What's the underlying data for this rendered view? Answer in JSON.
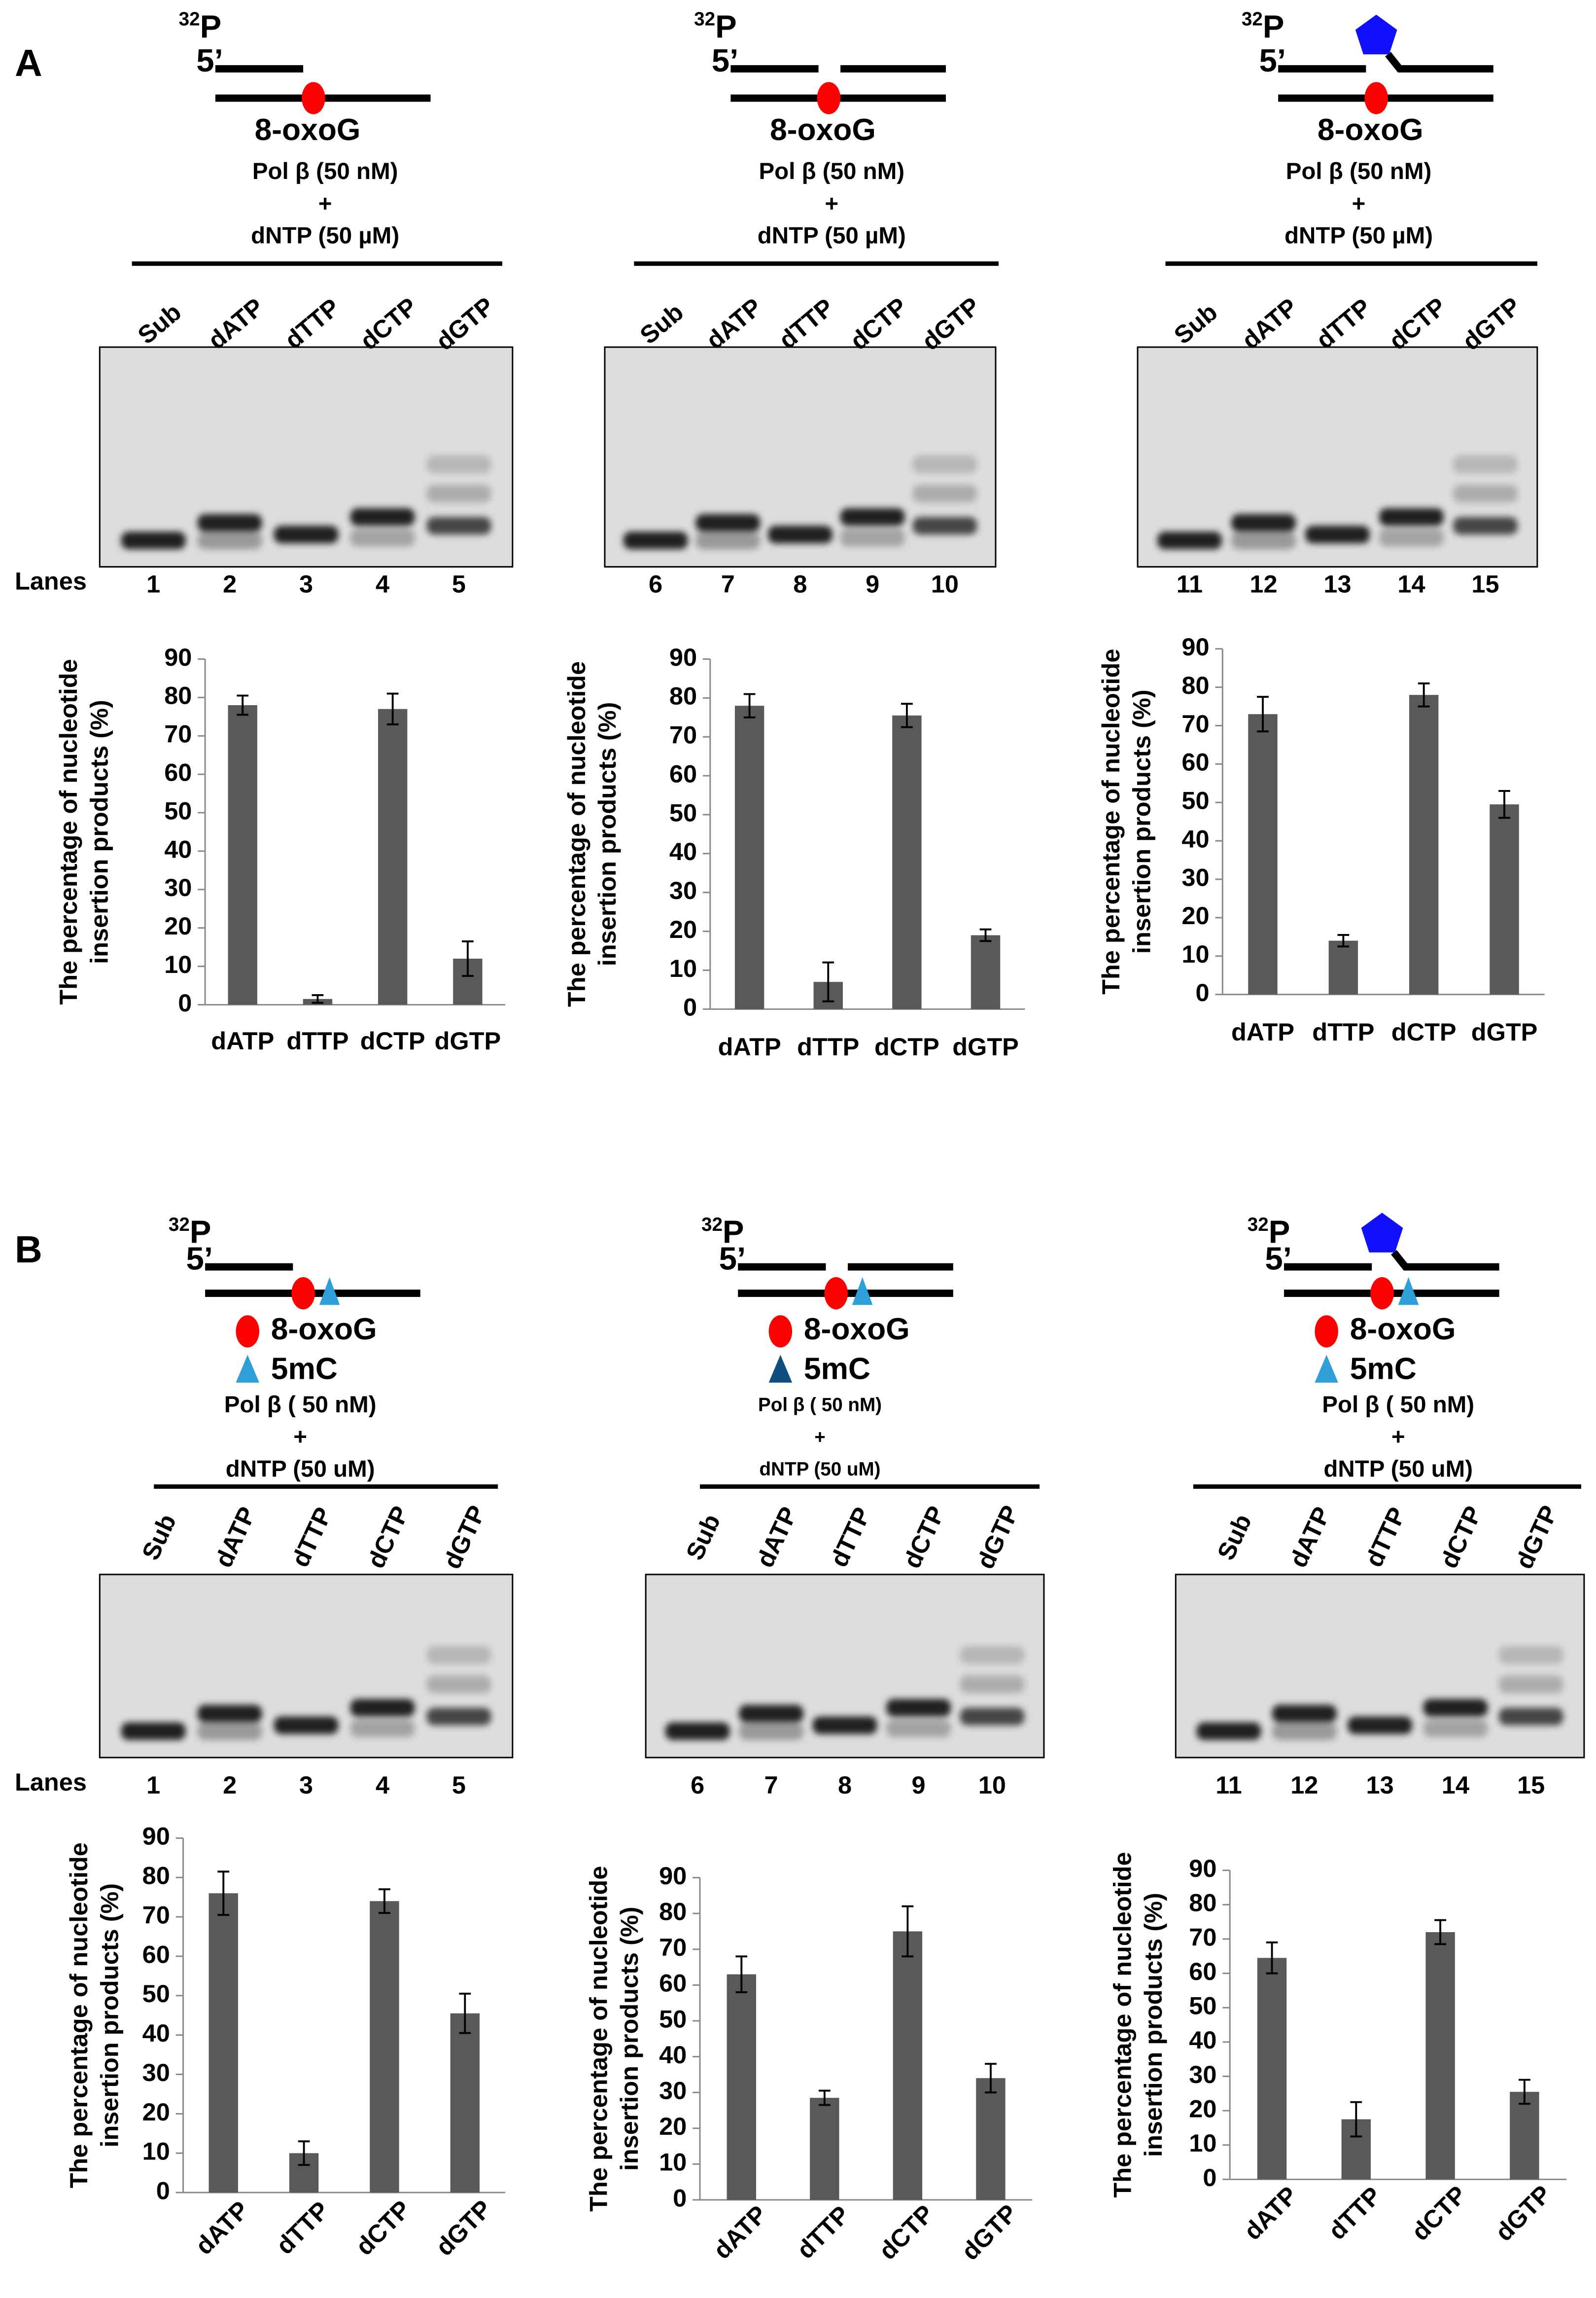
{
  "panels": [
    {
      "label": "A",
      "lanes_label": "Lanes",
      "diagrams": [
        {
          "isotope_mass": "32",
          "isotope": "P",
          "end": "5’",
          "lesion": "8-oxoG",
          "enzyme": "Pol β (50 nM)",
          "plus": "+",
          "nucleotide": "dNTP (50 µM)",
          "lanes": [
            "Sub",
            "dATP",
            "dTTP",
            "dCTP",
            "dGTP"
          ],
          "lane_numbers": [
            1,
            2,
            3,
            4,
            5
          ]
        },
        {
          "isotope_mass": "32",
          "isotope": "P",
          "end": "5’",
          "lesion": "8-oxoG",
          "enzyme": "Pol β (50 nM)",
          "plus": "+",
          "nucleotide": "dNTP (50 µM)",
          "lanes": [
            "Sub",
            "dATP",
            "dTTP",
            "dCTP",
            "dGTP"
          ],
          "lane_numbers": [
            6,
            7,
            8,
            9,
            10
          ]
        },
        {
          "isotope_mass": "32",
          "isotope": "P",
          "end": "5’",
          "lesion": "8-oxoG",
          "enzyme": "Pol β (50 nM)",
          "plus": "+",
          "nucleotide": "dNTP (50 µM)",
          "lanes": [
            "Sub",
            "dATP",
            "dTTP",
            "dCTP",
            "dGTP"
          ],
          "lane_numbers": [
            11,
            12,
            13,
            14,
            15
          ]
        }
      ]
    },
    {
      "label": "B",
      "lanes_label": "Lanes",
      "diagrams": [
        {
          "isotope_mass": "32",
          "isotope": "P",
          "end": "5’",
          "lesion": "8-oxoG",
          "modification": "5mC",
          "enzyme": "Pol β ( 50 nM)",
          "plus": "+",
          "nucleotide": "dNTP (50 uM)",
          "lanes": [
            "Sub",
            "dATP",
            "dTTP",
            "dCTP",
            "dGTP"
          ],
          "lane_numbers": [
            1,
            2,
            3,
            4,
            5
          ]
        },
        {
          "isotope_mass": "32",
          "isotope": "P",
          "end": "5’",
          "lesion": "8-oxoG",
          "modification": "5mC",
          "enzyme": "Pol β ( 50 nM)",
          "plus": "+",
          "nucleotide": "dNTP (50 uM)",
          "lanes": [
            "Sub",
            "dATP",
            "dTTP",
            "dCTP",
            "dGTP"
          ],
          "lane_numbers": [
            6,
            7,
            8,
            9,
            10
          ]
        },
        {
          "isotope_mass": "32",
          "isotope": "P",
          "end": "5’",
          "lesion": "8-oxoG",
          "modification": "5mC",
          "enzyme": "Pol β ( 50 nM)",
          "plus": "+",
          "nucleotide": "dNTP (50 uM)",
          "lanes": [
            "Sub",
            "dATP",
            "dTTP",
            "dCTP",
            "dGTP"
          ],
          "lane_numbers": [
            11,
            12,
            13,
            14,
            15
          ]
        }
      ]
    }
  ],
  "chart_data": [
    {
      "type": "bar",
      "ylabel": [
        "The percentage of nucleotide",
        "insertion products (%)"
      ],
      "categories": [
        "dATP",
        "dTTP",
        "dCTP",
        "dGTP"
      ],
      "values": [
        78,
        1.5,
        77,
        12
      ],
      "errors": [
        2.5,
        1,
        4,
        4.5
      ],
      "color": "#595959",
      "ylim": [
        0,
        90
      ],
      "yticks": [
        0,
        10,
        20,
        30,
        40,
        50,
        60,
        70,
        80,
        90
      ]
    },
    {
      "type": "bar",
      "ylabel": [
        "The percentage of nucleotide",
        "insertion products (%)"
      ],
      "categories": [
        "dATP",
        "dTTP",
        "dCTP",
        "dGTP"
      ],
      "values": [
        78,
        7,
        75.5,
        19
      ],
      "errors": [
        3,
        5,
        3,
        1.5
      ],
      "color": "#595959",
      "ylim": [
        0,
        90
      ],
      "yticks": [
        0,
        10,
        20,
        30,
        40,
        50,
        60,
        70,
        80,
        90
      ]
    },
    {
      "type": "bar",
      "ylabel": [
        "The percentage of nucleotide",
        "insertion products (%)"
      ],
      "categories": [
        "dATP",
        "dTTP",
        "dCTP",
        "dGTP"
      ],
      "values": [
        73,
        14,
        78,
        49.5
      ],
      "errors": [
        4.5,
        1.5,
        3,
        3.5
      ],
      "color": "#595959",
      "ylim": [
        0,
        90
      ],
      "yticks": [
        0,
        10,
        20,
        30,
        40,
        50,
        60,
        70,
        80,
        90
      ]
    },
    {
      "type": "bar",
      "ylabel": [
        "The percentage of nucleotide",
        "insertion products (%)"
      ],
      "categories": [
        "dATP",
        "dTTP",
        "dCTP",
        "dGTP"
      ],
      "values": [
        76,
        10,
        74,
        45.5
      ],
      "errors": [
        5.5,
        3,
        3,
        5
      ],
      "color": "#595959",
      "ylim": [
        0,
        90
      ],
      "yticks": [
        0,
        10,
        20,
        30,
        40,
        50,
        60,
        70,
        80,
        90
      ]
    },
    {
      "type": "bar",
      "ylabel": [
        "The percentage of nucleotide",
        "insertion products (%)"
      ],
      "categories": [
        "dATP",
        "dTTP",
        "dCTP",
        "dGTP"
      ],
      "values": [
        63,
        28.5,
        75,
        34
      ],
      "errors": [
        5,
        2,
        7,
        4
      ],
      "color": "#595959",
      "ylim": [
        0,
        90
      ],
      "yticks": [
        0,
        10,
        20,
        30,
        40,
        50,
        60,
        70,
        80,
        90
      ]
    },
    {
      "type": "bar",
      "ylabel": [
        "The percentage of nucleotide",
        "insertion products (%)"
      ],
      "categories": [
        "dATP",
        "dTTP",
        "dCTP",
        "dGTP"
      ],
      "values": [
        64.5,
        17.5,
        72,
        25.5
      ],
      "errors": [
        4.5,
        5,
        3.5,
        3.5
      ],
      "color": "#595959",
      "ylim": [
        0,
        90
      ],
      "yticks": [
        0,
        10,
        20,
        30,
        40,
        50,
        60,
        70,
        80,
        90
      ]
    }
  ]
}
